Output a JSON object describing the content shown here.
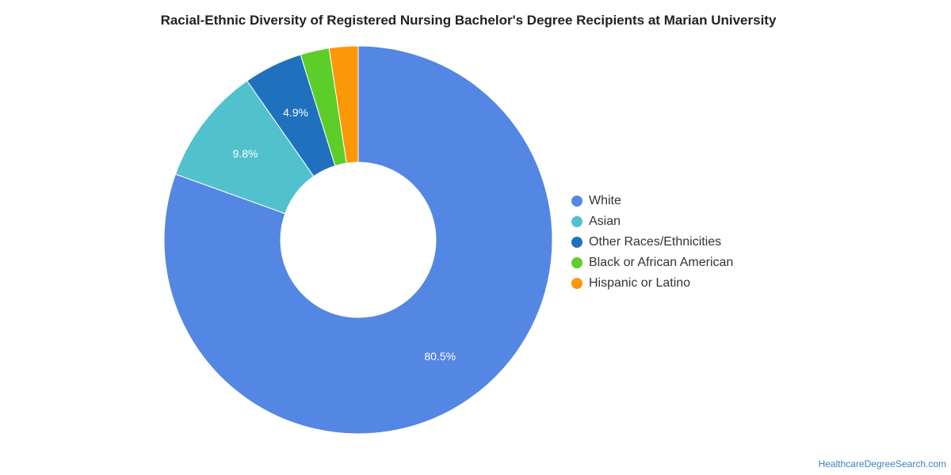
{
  "chart_data": {
    "type": "pie",
    "title": "Racial-Ethnic Diversity of Registered Nursing Bachelor's Degree Recipients at Marian University",
    "categories": [
      "White",
      "Asian",
      "Other Races/Ethnicities",
      "Black or African American",
      "Hispanic or Latino"
    ],
    "values": [
      80.5,
      9.8,
      4.9,
      2.4,
      2.4
    ],
    "labels": [
      "80.5%",
      "9.8%",
      "4.9%",
      "",
      ""
    ],
    "colors": [
      "#5486e3",
      "#51c1ce",
      "#1f71be",
      "#5dce29",
      "#fb9808"
    ],
    "legend_position": "right",
    "donut": true
  },
  "footer": {
    "source": "HealthcareDegreeSearch.com"
  }
}
